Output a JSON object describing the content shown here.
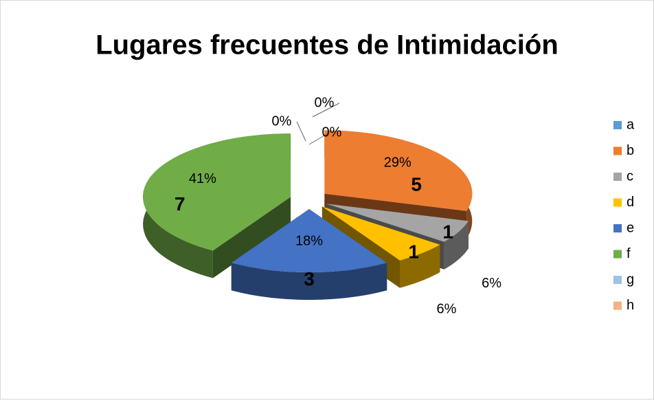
{
  "chart_data": {
    "type": "pie3d",
    "title": "Lugares frecuentes de Intimidación",
    "categories": [
      "a",
      "b",
      "c",
      "d",
      "e",
      "f",
      "g",
      "h"
    ],
    "values": [
      0,
      5,
      1,
      1,
      3,
      7,
      0,
      0
    ],
    "percent_labels": [
      "0%",
      "29%",
      "6%",
      "6%",
      "18%",
      "41%",
      "0%",
      "0%"
    ],
    "colors": [
      "#5b9bd5",
      "#ed7d31",
      "#a5a5a5",
      "#ffc000",
      "#4472c4",
      "#70ad47",
      "#9dc3e6",
      "#f4b183"
    ],
    "legend": "right"
  }
}
